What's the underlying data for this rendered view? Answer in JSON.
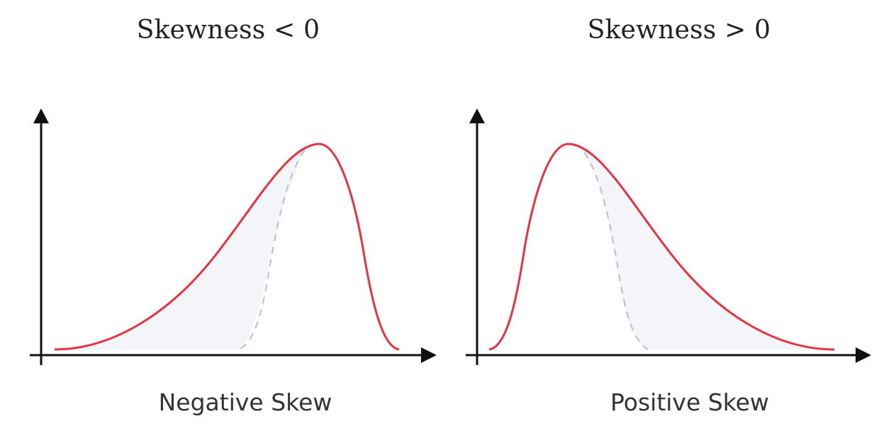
{
  "panels": [
    {
      "title": "Skewness < 0",
      "caption": "Negative Skew",
      "skew": "negative"
    },
    {
      "title": "Skewness > 0",
      "caption": "Positive Skew",
      "skew": "positive"
    }
  ],
  "colors": {
    "curve": "#e8323f",
    "reference_curve": "#b9bdd6",
    "fill": "#f4f5f8",
    "axis": "#111111"
  }
}
